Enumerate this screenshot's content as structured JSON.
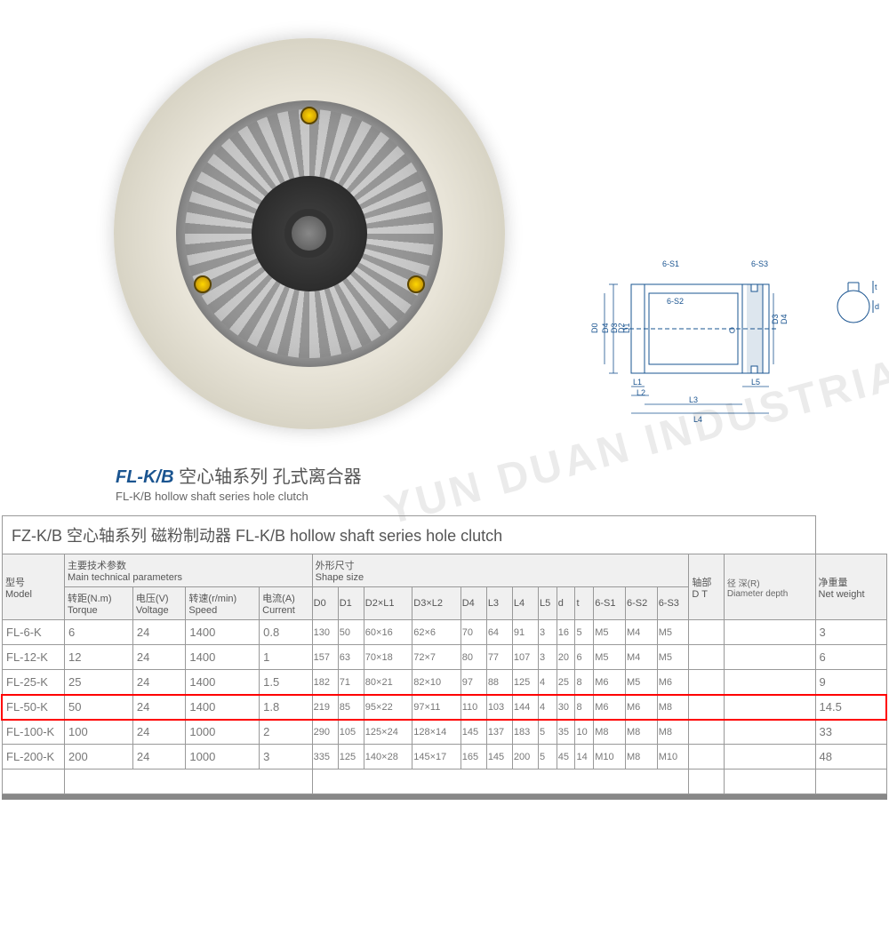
{
  "title": {
    "code": "FL-K/B",
    "main_cn": "空心轴系列 孔式离合器",
    "sub_en": "FL-K/B hollow shaft series hole clutch"
  },
  "watermark": "YUN DUAN INDUSTRIAL STORE",
  "drawing_labels": {
    "s1": "6-S1",
    "s2": "6-S2",
    "s3": "6-S3",
    "d0": "D0",
    "d1": "D1",
    "d2": "D2",
    "d3": "D3",
    "d4": "D4",
    "l1": "L1",
    "l2": "L2",
    "l3": "L3",
    "l4": "L4",
    "l5": "L5",
    "o": "O",
    "t": "t",
    "d": "d"
  },
  "table": {
    "banner": "FZ-K/B 空心轴系列 磁粉制动器  FL-K/B hollow shaft series hole clutch",
    "section_labels": {
      "model_cn": "型号",
      "model_en": "Model",
      "params_cn": "主要技术参数",
      "params_en": "Main technical parameters",
      "shape_cn": "外形尺寸",
      "shape_en": "Shape size",
      "shaft_cn": "轴部",
      "shaft_en": "D  T",
      "depth_cn": "径  深(R)",
      "depth_en": "Diameter depth",
      "weight_cn": "净重量",
      "weight_en": "Net weight"
    },
    "param_headers": {
      "torque_cn": "转距(N.m)",
      "torque_en": "Torque",
      "voltage_cn": "电压(V)",
      "voltage_en": "Voltage",
      "speed_cn": "转速(r/min)",
      "speed_en": "Speed",
      "current_cn": "电流(A)",
      "current_en": "Current"
    },
    "shape_headers": [
      "D0",
      "D1",
      "D2×L1",
      "D3×L2",
      "D4",
      "L3",
      "L4",
      "L5",
      "d",
      "t",
      "6-S1",
      "6-S2",
      "6-S3"
    ],
    "rows": [
      {
        "model": "FL-6-K",
        "torque": "6",
        "voltage": "24",
        "speed": "1400",
        "current": "0.8",
        "d0": "130",
        "d1": "50",
        "d2l1": "60×16",
        "d3l2": "62×6",
        "d4": "70",
        "l3": "64",
        "l4": "91",
        "l5": "3",
        "d": "16",
        "t": "5",
        "s1": "M5",
        "s2": "M4",
        "s3": "M5",
        "weight": "3"
      },
      {
        "model": "FL-12-K",
        "torque": "12",
        "voltage": "24",
        "speed": "1400",
        "current": "1",
        "d0": "157",
        "d1": "63",
        "d2l1": "70×18",
        "d3l2": "72×7",
        "d4": "80",
        "l3": "77",
        "l4": "107",
        "l5": "3",
        "d": "20",
        "t": "6",
        "s1": "M5",
        "s2": "M4",
        "s3": "M5",
        "weight": "6"
      },
      {
        "model": "FL-25-K",
        "torque": "25",
        "voltage": "24",
        "speed": "1400",
        "current": "1.5",
        "d0": "182",
        "d1": "71",
        "d2l1": "80×21",
        "d3l2": "82×10",
        "d4": "97",
        "l3": "88",
        "l4": "125",
        "l5": "4",
        "d": "25",
        "t": "8",
        "s1": "M6",
        "s2": "M5",
        "s3": "M6",
        "weight": "9"
      },
      {
        "model": "FL-50-K",
        "torque": "50",
        "voltage": "24",
        "speed": "1400",
        "current": "1.8",
        "d0": "219",
        "d1": "85",
        "d2l1": "95×22",
        "d3l2": "97×11",
        "d4": "110",
        "l3": "103",
        "l4": "144",
        "l5": "4",
        "d": "30",
        "t": "8",
        "s1": "M6",
        "s2": "M6",
        "s3": "M8",
        "weight": "14.5",
        "highlight": true
      },
      {
        "model": "FL-100-K",
        "torque": "100",
        "voltage": "24",
        "speed": "1000",
        "current": "2",
        "d0": "290",
        "d1": "105",
        "d2l1": "125×24",
        "d3l2": "128×14",
        "d4": "145",
        "l3": "137",
        "l4": "183",
        "l5": "5",
        "d": "35",
        "t": "10",
        "s1": "M8",
        "s2": "M8",
        "s3": "M8",
        "weight": "33"
      },
      {
        "model": "FL-200-K",
        "torque": "200",
        "voltage": "24",
        "speed": "1000",
        "current": "3",
        "d0": "335",
        "d1": "125",
        "d2l1": "140×28",
        "d3l2": "145×17",
        "d4": "165",
        "l3": "145",
        "l4": "200",
        "l5": "5",
        "d": "45",
        "t": "14",
        "s1": "M10",
        "s2": "M8",
        "s3": "M10",
        "weight": "48"
      }
    ]
  },
  "colors": {
    "highlight_border": "#ff0000",
    "text_primary": "#555555",
    "text_secondary": "#777777",
    "border": "#999999",
    "title_blue": "#1a5490"
  }
}
